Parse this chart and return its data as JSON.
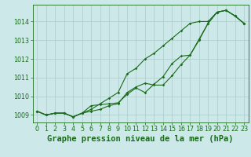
{
  "title": "Graphe pression niveau de la mer (hPa)",
  "bg_color": "#cce8e8",
  "plot_bg_color": "#cce8e8",
  "line_color": "#1a6b1a",
  "grid_color": "#aacccc",
  "hours": [
    0,
    1,
    2,
    3,
    4,
    5,
    6,
    7,
    8,
    9,
    10,
    11,
    12,
    13,
    14,
    15,
    16,
    17,
    18,
    19,
    20,
    21,
    22,
    23
  ],
  "series1": [
    1009.2,
    1009.0,
    1009.1,
    1009.1,
    1008.9,
    1009.1,
    1009.2,
    1009.3,
    1009.5,
    1009.6,
    1010.2,
    1010.5,
    1010.7,
    1010.6,
    1010.6,
    1011.1,
    1011.7,
    1012.2,
    1013.0,
    1013.9,
    1014.5,
    1014.6,
    1014.3,
    1013.9
  ],
  "series2": [
    1009.2,
    1009.0,
    1009.1,
    1009.1,
    1008.9,
    1009.1,
    1009.3,
    1009.6,
    1009.9,
    1010.2,
    1011.2,
    1011.5,
    1012.0,
    1012.3,
    1012.7,
    1013.1,
    1013.5,
    1013.9,
    1014.0,
    1014.0,
    1014.5,
    1014.6,
    1014.3,
    1013.9
  ],
  "series3": [
    1009.2,
    1009.0,
    1009.1,
    1009.1,
    1008.9,
    1009.1,
    1009.5,
    1009.55,
    1009.6,
    1009.65,
    1010.1,
    1010.45,
    1010.2,
    1010.65,
    1011.05,
    1011.75,
    1012.15,
    1012.2,
    1013.05,
    1013.9,
    1014.5,
    1014.6,
    1014.3,
    1013.9
  ],
  "ylim": [
    1008.6,
    1014.9
  ],
  "yticks": [
    1009,
    1010,
    1011,
    1012,
    1013,
    1014
  ],
  "xticks": [
    0,
    1,
    2,
    3,
    4,
    5,
    6,
    7,
    8,
    9,
    10,
    11,
    12,
    13,
    14,
    15,
    16,
    17,
    18,
    19,
    20,
    21,
    22,
    23
  ],
  "title_fontsize": 7.5,
  "tick_fontsize": 5.8,
  "marker_size": 1.8,
  "line_width": 0.8
}
